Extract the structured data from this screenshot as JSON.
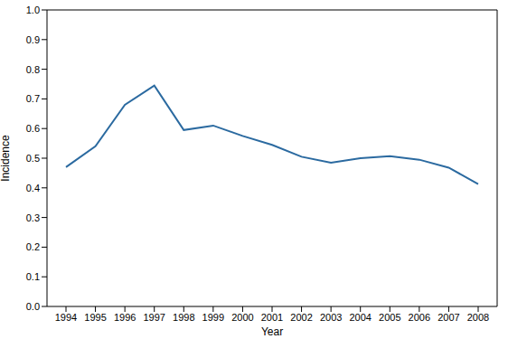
{
  "chart_data": {
    "type": "line",
    "x_label": "Year",
    "y_label": "Incidence",
    "categories": [
      "1994",
      "1995",
      "1996",
      "1997",
      "1998",
      "1999",
      "2000",
      "2001",
      "2002",
      "2003",
      "2004",
      "2005",
      "2006",
      "2007",
      "2008"
    ],
    "values": [
      0.47,
      0.54,
      0.68,
      0.745,
      0.595,
      0.61,
      0.575,
      0.545,
      0.505,
      0.485,
      0.5,
      0.507,
      0.495,
      0.468,
      0.413
    ],
    "color": "#2b6aa0",
    "ylim": [
      0,
      1
    ],
    "yticks": [
      {
        "value": 0,
        "label": "0.0"
      },
      0.1,
      0.2,
      0.3,
      0.4,
      0.5,
      0.6,
      0.7,
      0.8,
      0.9,
      {
        "value": 1,
        "label": "1.0"
      }
    ],
    "grid": false
  }
}
